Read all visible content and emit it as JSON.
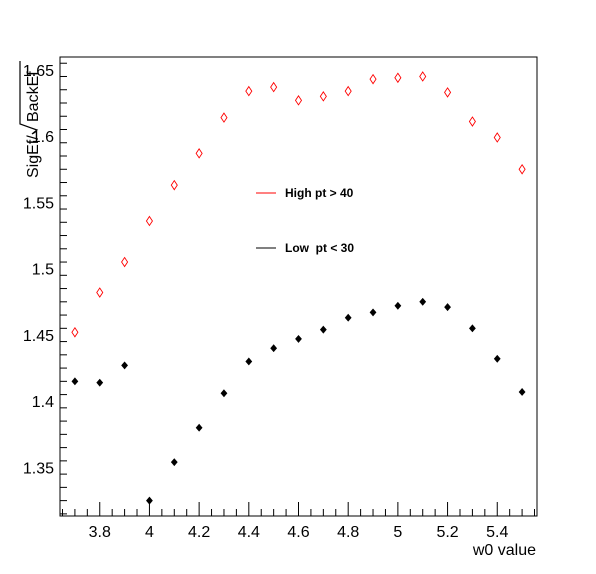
{
  "chart_data": {
    "type": "scatter",
    "title": "",
    "xlabel": "w0 value",
    "ylabel": "SigEf/√BackEf",
    "ylabel_main": "SigEf/",
    "ylabel_sqrt": "BackEf",
    "xlim": [
      3.64,
      5.56
    ],
    "ylim": [
      1.3134,
      1.6597
    ],
    "x_ticks": [
      3.8,
      4.0,
      4.2,
      4.4,
      4.6,
      4.8,
      5.0,
      5.2,
      5.4
    ],
    "x_tick_labels": [
      "3.8",
      "4",
      "4.2",
      "4.4",
      "4.6",
      "4.8",
      "5",
      "5.2",
      "5.4"
    ],
    "y_ticks": [
      1.35,
      1.4,
      1.45,
      1.5,
      1.55,
      1.6,
      1.65
    ],
    "y_tick_labels": [
      "1.35",
      "1.4",
      "1.45",
      "1.5",
      "1.55",
      "1.6",
      "1.65"
    ],
    "grid": false,
    "legend_position": "center",
    "series": [
      {
        "name": "High pt > 40",
        "color": "#ff0000",
        "marker": "open-diamond",
        "x": [
          3.7,
          3.8,
          3.9,
          4.0,
          4.1,
          4.2,
          4.3,
          4.4,
          4.5,
          4.6,
          4.7,
          4.8,
          4.9,
          5.0,
          5.1,
          5.2,
          5.3,
          5.4,
          5.5
        ],
        "y": [
          1.452,
          1.482,
          1.505,
          1.536,
          1.563,
          1.587,
          1.614,
          1.634,
          1.637,
          1.627,
          1.63,
          1.634,
          1.643,
          1.644,
          1.645,
          1.633,
          1.611,
          1.599,
          1.575
        ]
      },
      {
        "name": "Low  pt < 30",
        "color": "#000000",
        "marker": "filled-diamond",
        "x": [
          3.7,
          3.8,
          3.9,
          4.0,
          4.1,
          4.2,
          4.3,
          4.4,
          4.5,
          4.6,
          4.7,
          4.8,
          4.9,
          5.0,
          5.1,
          5.2,
          5.3,
          5.4,
          5.5
        ],
        "y": [
          1.415,
          1.414,
          1.427,
          1.325,
          1.354,
          1.38,
          1.406,
          1.43,
          1.44,
          1.447,
          1.454,
          1.463,
          1.467,
          1.472,
          1.475,
          1.471,
          1.455,
          1.432,
          1.407
        ]
      }
    ]
  }
}
